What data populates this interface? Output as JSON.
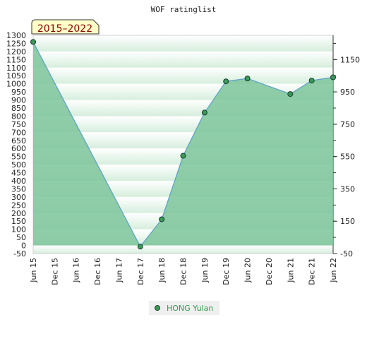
{
  "chart_data": {
    "type": "area",
    "title": "WOF ratinglist",
    "badge": "2015–2022",
    "x_labels": [
      "Jun 15",
      "Dec 15",
      "Jun 16",
      "Dec 16",
      "Jun 17",
      "Dec 17",
      "Jun 18",
      "Dec 18",
      "Jun 19",
      "Dec 19",
      "Jun 20",
      "Dec 20",
      "Jun 21",
      "Dec 21",
      "Jun 22"
    ],
    "y_left_ticks": [
      1300,
      1250,
      1200,
      1150,
      1100,
      1050,
      1000,
      950,
      900,
      850,
      800,
      750,
      700,
      650,
      600,
      550,
      500,
      450,
      400,
      350,
      300,
      250,
      200,
      150,
      100,
      50,
      0,
      -50
    ],
    "y_right_ticks": [
      1150,
      950,
      750,
      550,
      350,
      150,
      -50
    ],
    "ylim": [
      -50,
      1300
    ],
    "grid": "horizontal bands",
    "legend_position": "bottom-center",
    "colors": {
      "fill": "#7cc49a",
      "line": "#5aa0c8",
      "point": "#3a9a5a",
      "badge_bg": "#ffffc8"
    },
    "series": [
      {
        "name": "HONG Yulan",
        "points": [
          {
            "x": "Jun 15",
            "y": 1259
          },
          {
            "x": "Dec 17",
            "y": -7
          },
          {
            "x": "Jun 18",
            "y": 162
          },
          {
            "x": "Dec 18",
            "y": 555
          },
          {
            "x": "Jun 19",
            "y": 822
          },
          {
            "x": "Dec 19",
            "y": 1015
          },
          {
            "x": "Jun 20",
            "y": 1033
          },
          {
            "x": "Jun 21",
            "y": 937
          },
          {
            "x": "Dec 21",
            "y": 1020
          },
          {
            "x": "Jun 22",
            "y": 1040
          }
        ]
      }
    ]
  }
}
